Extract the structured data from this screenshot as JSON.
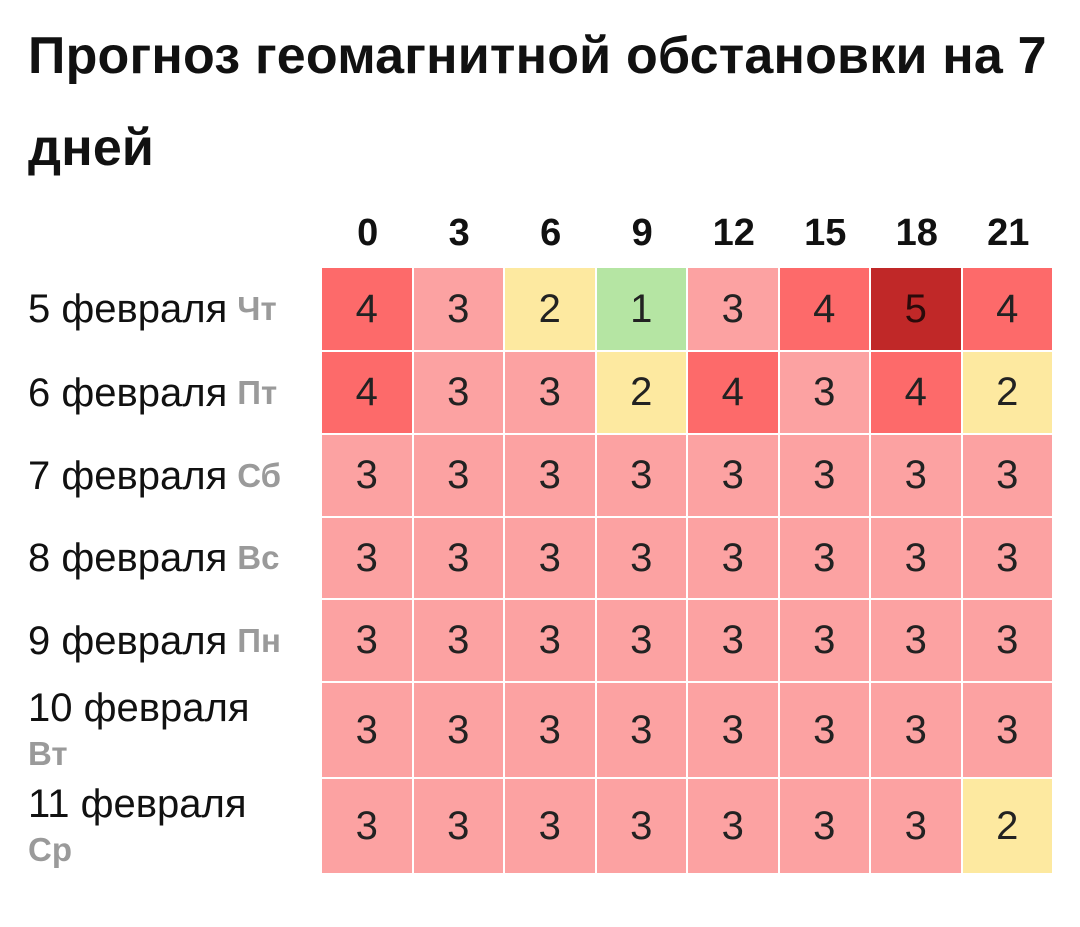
{
  "title": "Прогноз геомагнитной обстановки на 7 дней",
  "hours": [
    "0",
    "3",
    "6",
    "9",
    "12",
    "15",
    "18",
    "21"
  ],
  "level_colors": {
    "1": "#b5e5a3",
    "2": "#fde9a0",
    "3": "#fca2a2",
    "4": "#fd6a6a",
    "5": "#c02828"
  },
  "rows": [
    {
      "date": "5 февраля",
      "day": "Чт",
      "values": [
        "4",
        "3",
        "2",
        "1",
        "3",
        "4",
        "5",
        "4"
      ]
    },
    {
      "date": "6 февраля",
      "day": "Пт",
      "values": [
        "4",
        "3",
        "3",
        "2",
        "4",
        "3",
        "4",
        "2"
      ]
    },
    {
      "date": "7 февраля",
      "day": "Сб",
      "values": [
        "3",
        "3",
        "3",
        "3",
        "3",
        "3",
        "3",
        "3"
      ]
    },
    {
      "date": "8 февраля",
      "day": "Вс",
      "values": [
        "3",
        "3",
        "3",
        "3",
        "3",
        "3",
        "3",
        "3"
      ]
    },
    {
      "date": "9 февраля",
      "day": "Пн",
      "values": [
        "3",
        "3",
        "3",
        "3",
        "3",
        "3",
        "3",
        "3"
      ]
    },
    {
      "date": "10 февраля",
      "day": "Вт",
      "values": [
        "3",
        "3",
        "3",
        "3",
        "3",
        "3",
        "3",
        "3"
      ]
    },
    {
      "date": "11 февраля",
      "day": "Ср",
      "values": [
        "3",
        "3",
        "3",
        "3",
        "3",
        "3",
        "3",
        "2"
      ]
    }
  ]
}
